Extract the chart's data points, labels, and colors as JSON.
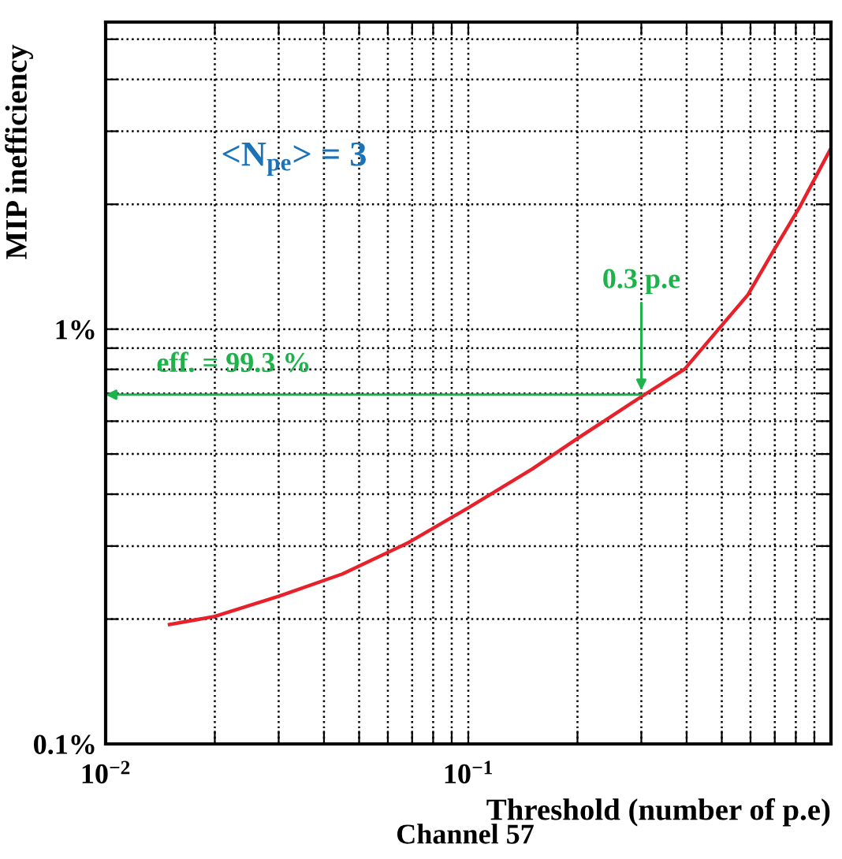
{
  "chart_data": {
    "type": "line",
    "xlabel": "Threshold (number of p.e)",
    "ylabel": "MIP inefficiency",
    "log": "xy",
    "grid": true,
    "line_style": "solid",
    "marker": "none",
    "xlim": [
      0.01,
      1
    ],
    "ylim": [
      0.1,
      5.5
    ],
    "xticks": [
      {
        "value": 0.01,
        "label": "10$^{−2}$"
      },
      {
        "value": 0.02,
        "label": null
      },
      {
        "value": 0.03,
        "label": null
      },
      {
        "value": 0.04,
        "label": null
      },
      {
        "value": 0.05,
        "label": null
      },
      {
        "value": 0.06,
        "label": null
      },
      {
        "value": 0.07,
        "label": null
      },
      {
        "value": 0.08,
        "label": null
      },
      {
        "value": 0.09,
        "label": null
      },
      {
        "value": 0.1,
        "label": "10$^{−1}$"
      },
      {
        "value": 0.2,
        "label": null
      },
      {
        "value": 0.3,
        "label": null
      },
      {
        "value": 0.4,
        "label": null
      },
      {
        "value": 0.5,
        "label": null
      },
      {
        "value": 0.6,
        "label": null
      },
      {
        "value": 0.7,
        "label": null
      },
      {
        "value": 0.8,
        "label": null
      },
      {
        "value": 0.9,
        "label": null
      }
    ],
    "yticks": [
      {
        "value": 0.1,
        "label": "0.1%"
      },
      {
        "value": 0.2,
        "label": null
      },
      {
        "value": 0.3,
        "label": null
      },
      {
        "value": 0.4,
        "label": null
      },
      {
        "value": 0.5,
        "label": null
      },
      {
        "value": 0.6,
        "label": null
      },
      {
        "value": 0.7,
        "label": null
      },
      {
        "value": 0.8,
        "label": null
      },
      {
        "value": 0.9,
        "label": null
      },
      {
        "value": 1,
        "label": "1%"
      },
      {
        "value": 2,
        "label": null
      },
      {
        "value": 3,
        "label": null
      },
      {
        "value": 4,
        "label": null
      },
      {
        "value": 5,
        "label": null
      }
    ],
    "series": [
      {
        "color": "#e8202a",
        "x": [
          0.015,
          0.02,
          0.03,
          0.045,
          0.068,
          0.1,
          0.15,
          0.2,
          0.295,
          0.395,
          0.49,
          0.59,
          0.69,
          0.82,
          1.0
        ],
        "values": [
          0.194,
          0.203,
          0.227,
          0.257,
          0.305,
          0.371,
          0.46,
          0.545,
          0.681,
          0.801,
          1.0,
          1.21,
          1.53,
          1.97,
          2.73
        ]
      }
    ],
    "annotations": [
      {
        "text": "0.3 p.e",
        "x": 0.3,
        "y": 0.695
      },
      "<N$_{pe}$> = 3",
      "eff. = 99.3 %",
      "Channel 57"
    ]
  }
}
